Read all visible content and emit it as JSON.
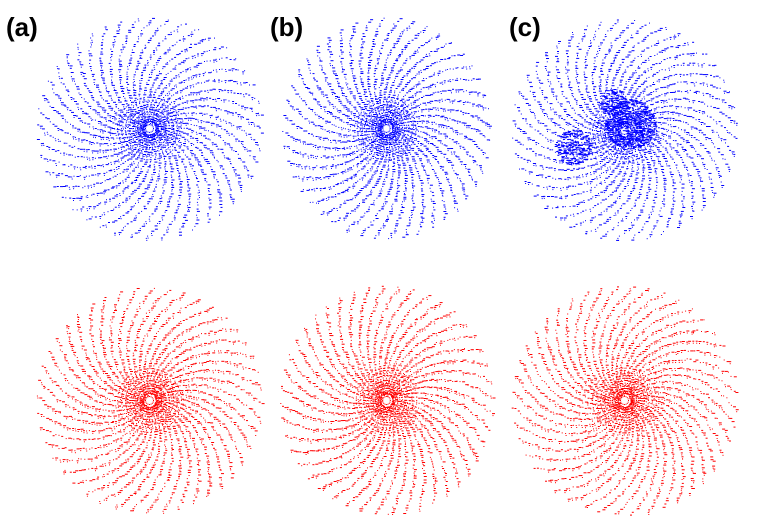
{
  "panels": {
    "a": {
      "label": "(a)"
    },
    "b": {
      "label": "(b)"
    },
    "c": {
      "label": "(c)"
    }
  },
  "colors": {
    "top_row": "#0000ff",
    "bottom_row": "#ff0000",
    "background": "#ffffff"
  },
  "plots": [
    {
      "panel": "a",
      "row": "top",
      "color_key": "top_row",
      "pattern": "radial-spiral-dots"
    },
    {
      "panel": "b",
      "row": "top",
      "color_key": "top_row",
      "pattern": "radial-spiral-dots"
    },
    {
      "panel": "c",
      "row": "top",
      "color_key": "top_row",
      "pattern": "radial-spiral-dots-with-clusters"
    },
    {
      "panel": "a",
      "row": "bottom",
      "color_key": "bottom_row",
      "pattern": "radial-spiral-dots"
    },
    {
      "panel": "b",
      "row": "bottom",
      "color_key": "bottom_row",
      "pattern": "radial-spiral-dots"
    },
    {
      "panel": "c",
      "row": "bottom",
      "color_key": "bottom_row",
      "pattern": "radial-spiral-dots"
    }
  ]
}
